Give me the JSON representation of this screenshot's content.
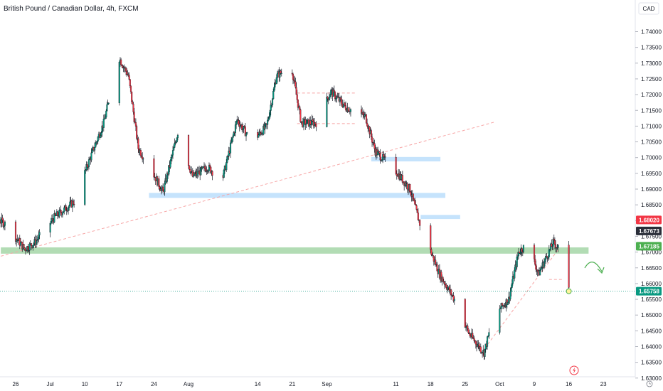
{
  "chart_data": {
    "type": "candlestick",
    "title": "British Pound / Canadian Dollar, 4h, FXCM",
    "currency": "CAD",
    "ylim": [
      1.627,
      1.744
    ],
    "y_ticks": [
      "1.74000",
      "1.73500",
      "1.73000",
      "1.72500",
      "1.72000",
      "1.71500",
      "1.71000",
      "1.70500",
      "1.70000",
      "1.69500",
      "1.69000",
      "1.68500",
      "1.68000",
      "1.67500",
      "1.67000",
      "1.66500",
      "1.66000",
      "1.65500",
      "1.65000",
      "1.64500",
      "1.64000",
      "1.63500",
      "1.63000"
    ],
    "x_ticks": [
      {
        "label": "26",
        "date": "2023-06-26"
      },
      {
        "label": "Jul",
        "date": "2023-07-03"
      },
      {
        "label": "10",
        "date": "2023-07-10"
      },
      {
        "label": "17",
        "date": "2023-07-17"
      },
      {
        "label": "24",
        "date": "2023-07-24"
      },
      {
        "label": "Aug",
        "date": "2023-07-31"
      },
      {
        "label": "14",
        "date": "2023-08-14"
      },
      {
        "label": "21",
        "date": "2023-08-21"
      },
      {
        "label": "Sep",
        "date": "2023-08-28"
      },
      {
        "label": "11",
        "date": "2023-09-11"
      },
      {
        "label": "18",
        "date": "2023-09-18"
      },
      {
        "label": "25",
        "date": "2023-09-25"
      },
      {
        "label": "Oct",
        "date": "2023-10-02"
      },
      {
        "label": "9",
        "date": "2023-10-09"
      },
      {
        "label": "16",
        "date": "2023-10-16"
      },
      {
        "label": "23",
        "date": "2023-10-23"
      }
    ],
    "price_tags": [
      {
        "label": "1.68020",
        "value": 1.6802,
        "color": "#f23645"
      },
      {
        "label": "1.67673",
        "value": 1.6767,
        "color": "#2a2e39"
      },
      {
        "label": "1.67185",
        "value": 1.67185,
        "color": "#4caf50"
      },
      {
        "label": "1.65758",
        "value": 1.65758,
        "color": "#089981"
      }
    ],
    "last_price": 1.65758,
    "path": [
      {
        "date": "2023-06-19",
        "price": 1.684
      },
      {
        "date": "2023-06-24",
        "price": 1.679
      },
      {
        "date": "2023-06-28",
        "price": 1.671
      },
      {
        "date": "2023-06-30",
        "price": 1.673
      },
      {
        "date": "2023-07-04",
        "price": 1.681
      },
      {
        "date": "2023-07-08",
        "price": 1.686
      },
      {
        "date": "2023-07-12",
        "price": 1.703
      },
      {
        "date": "2023-07-14",
        "price": 1.711
      },
      {
        "date": "2023-07-17",
        "price": 1.732
      },
      {
        "date": "2023-07-19",
        "price": 1.726
      },
      {
        "date": "2023-07-21",
        "price": 1.703
      },
      {
        "date": "2023-07-24",
        "price": 1.695
      },
      {
        "date": "2023-07-26",
        "price": 1.689
      },
      {
        "date": "2023-07-29",
        "price": 1.708
      },
      {
        "date": "2023-08-01",
        "price": 1.694
      },
      {
        "date": "2023-08-04",
        "price": 1.697
      },
      {
        "date": "2023-08-07",
        "price": 1.693
      },
      {
        "date": "2023-08-10",
        "price": 1.712
      },
      {
        "date": "2023-08-13",
        "price": 1.705
      },
      {
        "date": "2023-08-16",
        "price": 1.71
      },
      {
        "date": "2023-08-18",
        "price": 1.726
      },
      {
        "date": "2023-08-21",
        "price": 1.729
      },
      {
        "date": "2023-08-23",
        "price": 1.711
      },
      {
        "date": "2023-08-26",
        "price": 1.711
      },
      {
        "date": "2023-08-29",
        "price": 1.721
      },
      {
        "date": "2023-09-01",
        "price": 1.716
      },
      {
        "date": "2023-09-05",
        "price": 1.713
      },
      {
        "date": "2023-09-07",
        "price": 1.702
      },
      {
        "date": "2023-09-11",
        "price": 1.696
      },
      {
        "date": "2023-09-14",
        "price": 1.69
      },
      {
        "date": "2023-09-16",
        "price": 1.679
      },
      {
        "date": "2023-09-18",
        "price": 1.671
      },
      {
        "date": "2023-09-20",
        "price": 1.663
      },
      {
        "date": "2023-09-23",
        "price": 1.655
      },
      {
        "date": "2023-09-26",
        "price": 1.644
      },
      {
        "date": "2023-09-29",
        "price": 1.638
      },
      {
        "date": "2023-10-01",
        "price": 1.65
      },
      {
        "date": "2023-10-04",
        "price": 1.655
      },
      {
        "date": "2023-10-06",
        "price": 1.67
      },
      {
        "date": "2023-10-08",
        "price": 1.673
      },
      {
        "date": "2023-10-10",
        "price": 1.663
      },
      {
        "date": "2023-10-13",
        "price": 1.673
      },
      {
        "date": "2023-10-15",
        "price": 1.67
      },
      {
        "date": "2023-10-16",
        "price": 1.6576
      }
    ],
    "support_zones": [
      {
        "from": "2023-06-23",
        "to": "2023-10-20",
        "low": 1.6695,
        "high": 1.6715,
        "color": "#a5d6a7"
      },
      {
        "from": "2023-07-23",
        "to": "2023-09-21",
        "low": 1.6872,
        "high": 1.6888,
        "color": "#bbdefb"
      },
      {
        "from": "2023-09-06",
        "to": "2023-09-20",
        "low": 1.6988,
        "high": 1.7002,
        "color": "#bbdefb"
      },
      {
        "from": "2023-09-16",
        "to": "2023-09-24",
        "low": 1.6805,
        "high": 1.6818,
        "color": "#bbdefb"
      }
    ],
    "trendlines": [
      {
        "from": {
          "date": "2023-06-23",
          "price": 1.6687
        },
        "to": {
          "date": "2023-10-01",
          "price": 1.7113
        },
        "color": "#f7a5a5"
      },
      {
        "from": {
          "date": "2023-09-29",
          "price": 1.6395
        },
        "to": {
          "date": "2023-10-14",
          "price": 1.6711
        },
        "color": "#f7a5a5"
      }
    ],
    "level_lines": [
      {
        "from": "2023-08-22",
        "to": "2023-09-03",
        "price": 1.7205,
        "color": "#f7a5a5"
      },
      {
        "from": "2023-08-22",
        "to": "2023-09-03",
        "price": 1.7108,
        "color": "#f7a5a5"
      },
      {
        "from": "2023-10-12",
        "to": "2023-10-15",
        "price": 1.6613,
        "color": "#f7a5a5"
      }
    ],
    "projection_arrow": {
      "direction": "down",
      "color": "#4caf50"
    },
    "colors": {
      "up": "#089981",
      "down": "#f23645",
      "candle": "#131722"
    }
  }
}
